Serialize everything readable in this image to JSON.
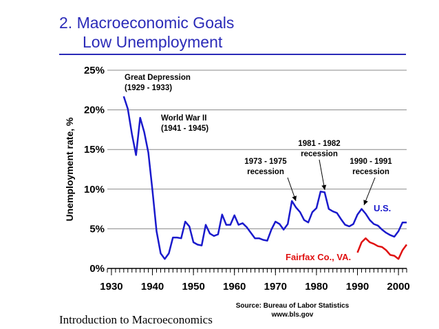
{
  "slide": {
    "title_line1": "2.  Macroeconomic Goals",
    "title_line2": "Low Unemployment",
    "source_line1": "Source: Bureau of Labor Statistics",
    "source_line2": "www.bls.gov",
    "footer": "Introduction to Macroeconomics"
  },
  "colors": {
    "title": "#2b2bb8",
    "us_series": "#1a1acc",
    "fairfax_series": "#e01010"
  },
  "chart_data": {
    "type": "line",
    "title": "",
    "xlabel": "",
    "ylabel": "Unemployment rate, %",
    "xlim": [
      1929,
      2002
    ],
    "ylim": [
      0,
      25
    ],
    "x_ticks": [
      1930,
      1940,
      1950,
      1960,
      1970,
      1980,
      1990,
      2000
    ],
    "y_ticks": [
      0,
      5,
      10,
      15,
      20,
      25
    ],
    "y_tick_labels": [
      "0%",
      "5%",
      "10%",
      "15%",
      "20%",
      "25%"
    ],
    "grid": "horizontal",
    "series": [
      {
        "name": "U.S.",
        "color": "#1a1acc",
        "x": [
          1933,
          1934,
          1935,
          1936,
          1937,
          1938,
          1939,
          1940,
          1941,
          1942,
          1943,
          1944,
          1945,
          1946,
          1947,
          1948,
          1949,
          1950,
          1951,
          1952,
          1953,
          1954,
          1955,
          1956,
          1957,
          1958,
          1959,
          1960,
          1961,
          1962,
          1963,
          1964,
          1965,
          1966,
          1967,
          1968,
          1969,
          1970,
          1971,
          1972,
          1973,
          1974,
          1975,
          1976,
          1977,
          1978,
          1979,
          1980,
          1981,
          1982,
          1983,
          1984,
          1985,
          1986,
          1987,
          1988,
          1989,
          1990,
          1991,
          1992,
          1993,
          1994,
          1995,
          1996,
          1997,
          1998,
          1999,
          2000,
          2001,
          2002
        ],
        "y": [
          21.7,
          20.1,
          16.9,
          14.3,
          19.0,
          17.2,
          14.6,
          9.9,
          4.7,
          1.9,
          1.2,
          1.9,
          3.9,
          3.9,
          3.8,
          5.9,
          5.3,
          3.3,
          3.0,
          2.9,
          5.5,
          4.4,
          4.1,
          4.3,
          6.8,
          5.5,
          5.5,
          6.7,
          5.5,
          5.7,
          5.2,
          4.5,
          3.8,
          3.8,
          3.6,
          3.5,
          4.9,
          5.9,
          5.6,
          4.9,
          5.6,
          8.5,
          7.7,
          7.1,
          6.1,
          5.8,
          7.1,
          7.6,
          9.7,
          9.6,
          7.5,
          7.2,
          7.0,
          6.2,
          5.5,
          5.3,
          5.6,
          6.8,
          7.5,
          6.9,
          6.1,
          5.6,
          5.4,
          4.9,
          4.5,
          4.2,
          4.0,
          4.7,
          5.8,
          5.8
        ]
      },
      {
        "name": "Fairfax Co., VA.",
        "color": "#e01010",
        "x": [
          1990,
          1991,
          1992,
          1993,
          1994,
          1995,
          1996,
          1997,
          1998,
          1999,
          2000,
          2001,
          2002
        ],
        "y": [
          2.0,
          3.3,
          3.8,
          3.3,
          3.1,
          2.8,
          2.7,
          2.3,
          1.7,
          1.6,
          1.2,
          2.3,
          3.0
        ]
      }
    ],
    "annotations": [
      {
        "lines": [
          "Great Depression",
          "(1929 - 1933)"
        ],
        "color": "#000000"
      },
      {
        "lines": [
          "World War II",
          "(1941 - 1945)"
        ],
        "color": "#000000"
      },
      {
        "lines": [
          "1973 - 1975",
          "recession"
        ],
        "color": "#000000"
      },
      {
        "lines": [
          "1981 - 1982",
          "recession"
        ],
        "color": "#000000"
      },
      {
        "lines": [
          "1990 - 1991",
          "recession"
        ],
        "color": "#000000"
      }
    ]
  }
}
